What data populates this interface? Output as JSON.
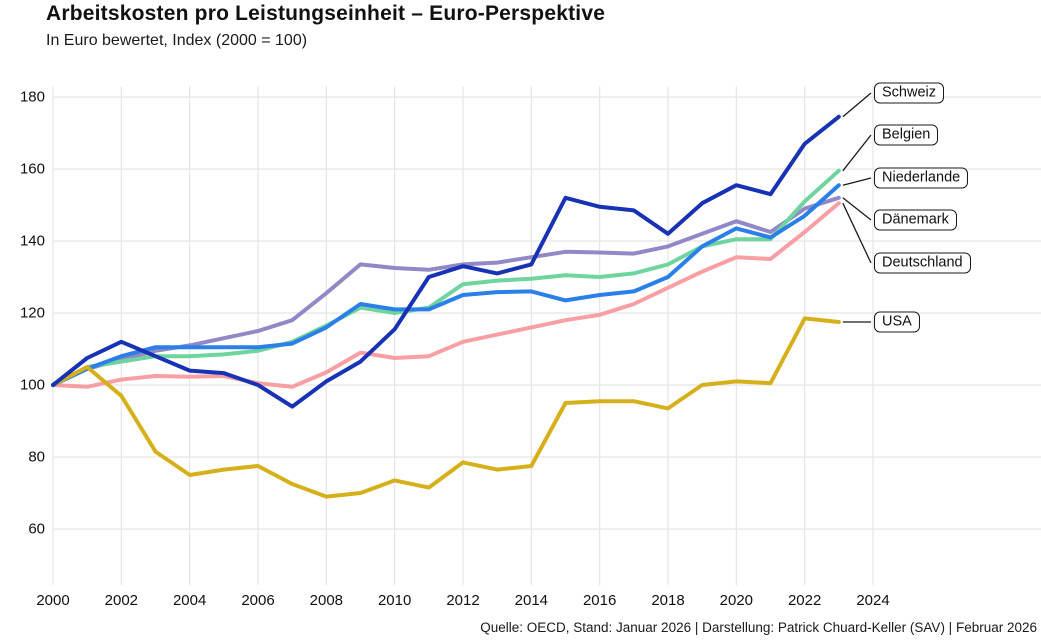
{
  "title": "Arbeitskosten pro Leistungseinheit – Euro-Perspektive",
  "subtitle": "In Euro bewertet, Index (2000 = 100)",
  "footer": "Quelle: OECD, Stand: Januar 2026 | Darstellung: Patrick Chuard-Keller (SAV) | Februar 2026",
  "chart_data": {
    "type": "line",
    "x": [
      2000,
      2001,
      2002,
      2003,
      2004,
      2005,
      2006,
      2007,
      2008,
      2009,
      2010,
      2011,
      2012,
      2013,
      2014,
      2015,
      2016,
      2017,
      2018,
      2019,
      2020,
      2021,
      2022,
      2023
    ],
    "x_ticks": [
      2000,
      2002,
      2004,
      2006,
      2008,
      2010,
      2012,
      2014,
      2016,
      2018,
      2020,
      2022,
      2024
    ],
    "y_ticks": [
      60,
      80,
      100,
      120,
      140,
      160,
      180
    ],
    "xlim": [
      2000,
      2024
    ],
    "ylim": [
      55,
      185
    ],
    "grid": true,
    "legend_position": "right-edge-labels",
    "series": [
      {
        "name": "Schweiz",
        "color": "#1733b4",
        "values": [
          100,
          107.5,
          112,
          108,
          104,
          103.3,
          100,
          94,
          101,
          106.5,
          115.5,
          130,
          133,
          131,
          133.5,
          152,
          149.5,
          148.5,
          142,
          150.5,
          155.5,
          153,
          167,
          174.5
        ]
      },
      {
        "name": "Belgien",
        "color": "#6fd49e",
        "values": [
          100,
          105,
          106.5,
          108,
          108,
          108.5,
          109.5,
          112,
          116.5,
          121.5,
          120,
          121.5,
          128,
          129,
          129.5,
          130.5,
          130,
          131,
          133.5,
          138.5,
          140.5,
          140.5,
          151,
          159.5
        ]
      },
      {
        "name": "Niederlande",
        "color": "#2b7fe8",
        "values": [
          100,
          104.5,
          108,
          110.5,
          110.5,
          110.5,
          110.5,
          111.5,
          116,
          122.5,
          121,
          121,
          125,
          125.8,
          126,
          123.5,
          125,
          126,
          130,
          138.5,
          143.5,
          141,
          147,
          155.5
        ]
      },
      {
        "name": "Dänemark",
        "color": "#9188c7",
        "values": [
          100,
          104.5,
          107,
          109.5,
          111,
          113,
          115,
          118,
          125.5,
          133.5,
          132.5,
          132,
          133.5,
          134,
          135.5,
          137,
          136.8,
          136.5,
          138.5,
          142,
          145.5,
          142.5,
          149,
          152
        ]
      },
      {
        "name": "Deutschland",
        "color": "#f89fa4",
        "values": [
          100,
          99.5,
          101.5,
          102.5,
          102.3,
          102.5,
          100.5,
          99.5,
          103.5,
          109,
          107.5,
          108,
          112,
          114,
          116,
          118,
          119.5,
          122.5,
          127,
          131.5,
          135.5,
          135,
          142.5,
          150.5
        ]
      },
      {
        "name": "USA",
        "color": "#d5b01a",
        "values": [
          100,
          105,
          97,
          81.5,
          75,
          76.5,
          77.5,
          72.5,
          69,
          70,
          73.5,
          71.5,
          78.5,
          76.5,
          77.5,
          95,
          95.5,
          95.5,
          93.5,
          100,
          101,
          100.5,
          118.5,
          117.5
        ]
      }
    ],
    "z_order": [
      "Deutschland",
      "Dänemark",
      "Belgien",
      "Niederlande",
      "USA",
      "Schweiz"
    ]
  }
}
